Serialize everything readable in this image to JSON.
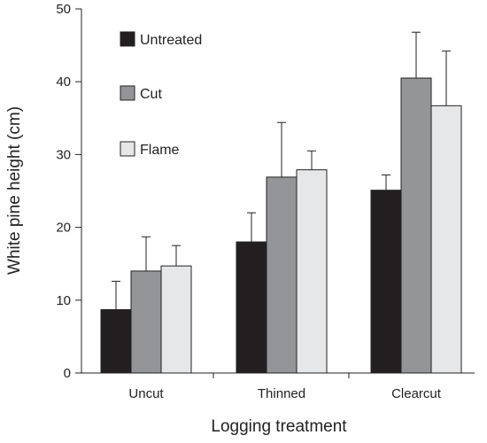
{
  "chart_data": {
    "type": "bar",
    "xlabel": "Logging treatment",
    "ylabel": "White pine height (cm)",
    "ylim": [
      0,
      50
    ],
    "yticks": [
      0,
      10,
      20,
      30,
      40,
      50
    ],
    "categories": [
      "Uncut",
      "Thinned",
      "Clearcut"
    ],
    "series": [
      {
        "name": "Untreated",
        "color": "#231f20",
        "values": [
          8.7,
          18.0,
          25.1
        ],
        "errors": [
          3.9,
          4.0,
          2.1
        ]
      },
      {
        "name": "Cut",
        "color": "#939598",
        "values": [
          14.0,
          26.9,
          40.5
        ],
        "errors": [
          4.7,
          7.5,
          6.3
        ]
      },
      {
        "name": "Flame",
        "color": "#e6e7e8",
        "values": [
          14.7,
          27.9,
          36.7
        ],
        "errors": [
          2.8,
          2.6,
          7.5
        ]
      }
    ],
    "legend_position": "top-left",
    "grid": false
  }
}
